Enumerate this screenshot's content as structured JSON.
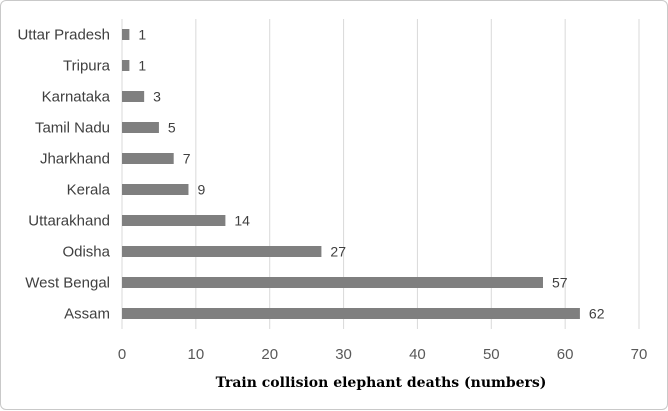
{
  "chart_data": {
    "type": "bar",
    "orientation": "horizontal",
    "title": "",
    "xlabel": "Train collision elephant deaths (numbers)",
    "ylabel": "",
    "categories": [
      "Assam",
      "West Bengal",
      "Odisha",
      "Uttarakhand",
      "Kerala",
      "Jharkhand",
      "Tamil Nadu",
      "Karnataka",
      "Tripura",
      "Uttar Pradesh"
    ],
    "values": [
      62,
      57,
      27,
      14,
      9,
      7,
      5,
      3,
      1,
      1
    ],
    "xlim": [
      0,
      70
    ],
    "xticks": [
      0,
      10,
      20,
      30,
      40,
      50,
      60,
      70
    ],
    "grid": "vertical",
    "data_labels": true,
    "colors": {
      "bar": "#7f7f7f",
      "grid": "#d9d9d9"
    }
  }
}
